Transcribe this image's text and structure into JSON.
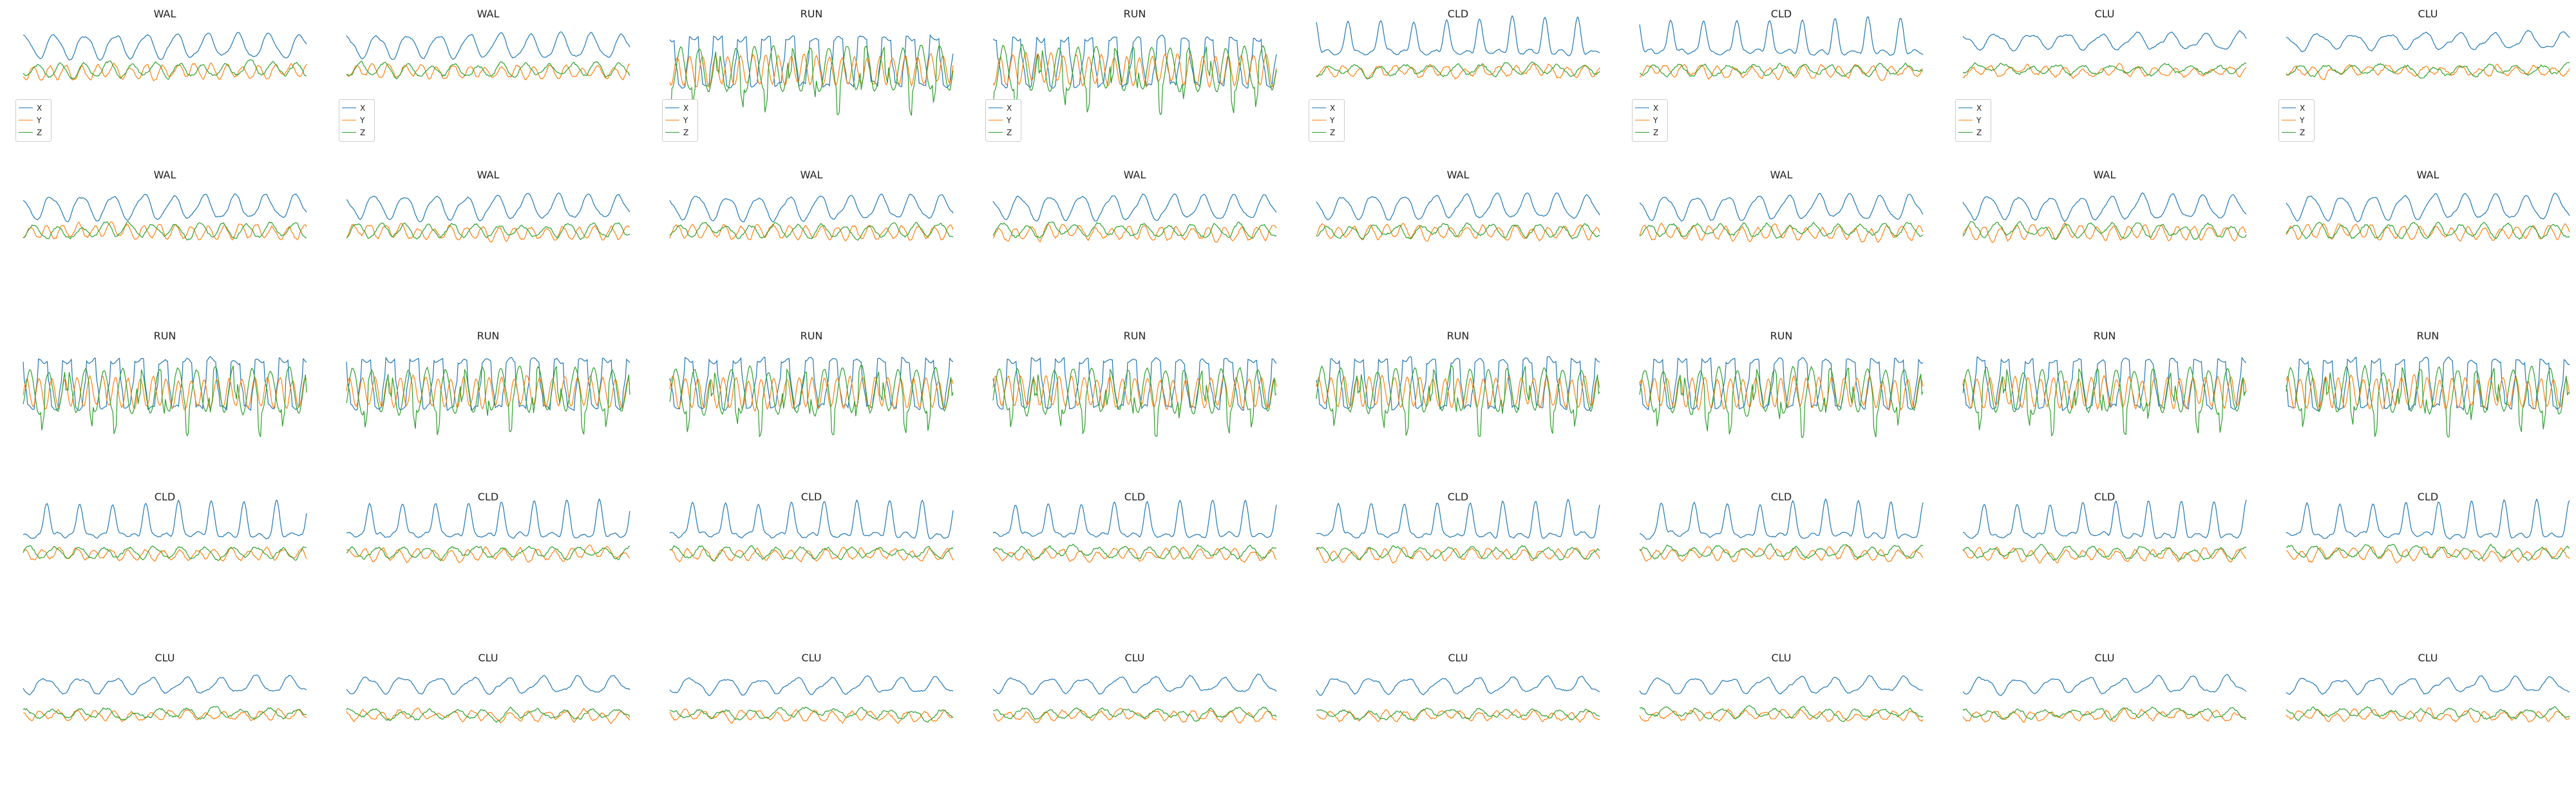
{
  "colors": {
    "X": "#1f77b4",
    "Y": "#ff7f0e",
    "Z": "#2ca02c"
  },
  "chart_data": {
    "type": "line",
    "layout": {
      "rows": 5,
      "cols": 8
    },
    "series_names": [
      "X",
      "Y",
      "Z"
    ],
    "legend_on_row": 0,
    "panels": [
      [
        "WAL",
        "WAL",
        "RUN",
        "RUN",
        "CLD",
        "CLD",
        "CLU",
        "CLU"
      ],
      [
        "WAL",
        "WAL",
        "WAL",
        "WAL",
        "WAL",
        "WAL",
        "WAL",
        "WAL"
      ],
      [
        "RUN",
        "RUN",
        "RUN",
        "RUN",
        "RUN",
        "RUN",
        "RUN",
        "RUN"
      ],
      [
        "CLD",
        "CLD",
        "CLD",
        "CLD",
        "CLD",
        "CLD",
        "CLD",
        "CLD"
      ],
      [
        "CLU",
        "CLU",
        "CLU",
        "CLU",
        "CLU",
        "CLU",
        "CLU",
        "CLU"
      ]
    ],
    "grid": false,
    "axes_visible": false
  }
}
